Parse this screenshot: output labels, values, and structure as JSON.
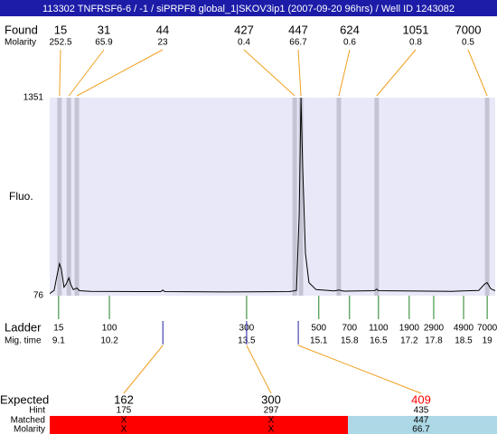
{
  "title": "113302  TNFRSF6-6 / -1 / siPRPF8 global_1|SKOV3ip1 (2007-09-20 96hrs) / Well ID 1243082",
  "chart_data": {
    "type": "line",
    "ylabel": "Fluo.",
    "ylim": [
      76,
      1351
    ],
    "yticks": [
      76,
      1351
    ],
    "xlim": [
      0,
      100
    ],
    "color": "#000000",
    "background": "#e8e8f8",
    "x": [
      0,
      1.0,
      1.6,
      2.2,
      2.6,
      3.2,
      3.7,
      4.3,
      4.7,
      5.3,
      6.1,
      6.7,
      9.1,
      19.3,
      24.9,
      25.4,
      25.8,
      39.6,
      53.8,
      55.4,
      56.0,
      56.4,
      56.8,
      57.4,
      58.2,
      59.8,
      63.9,
      64.9,
      66.0,
      72.9,
      73.4,
      73.8,
      90.2,
      96.3,
      97.6,
      98.2,
      99.0,
      100
    ],
    "values": [
      90,
      110,
      200,
      282,
      250,
      130,
      150,
      190,
      150,
      115,
      125,
      108,
      104,
      102,
      102,
      112,
      102,
      100,
      102,
      110,
      600,
      1351,
      900,
      350,
      160,
      115,
      106,
      112,
      105,
      108,
      118,
      108,
      104,
      110,
      150,
      160,
      120,
      108
    ],
    "found": {
      "label": "Found",
      "molarity_label": "Molarity",
      "sizes": [
        15,
        31,
        44,
        427,
        447,
        624,
        1051,
        7000
      ],
      "molarity": [
        252.5,
        65.9,
        23,
        0.4,
        66.7,
        0.6,
        0.8,
        0.5
      ],
      "x": [
        2.2,
        4.3,
        6.1,
        55.0,
        56.4,
        64.9,
        73.4,
        98.2
      ]
    },
    "ladder": {
      "label": "Ladder",
      "mig_label": "Mig. time",
      "sizes": [
        15,
        100,
        300,
        500,
        700,
        1100,
        1900,
        2900,
        4900,
        7000
      ],
      "mig_time": [
        9.1,
        10.2,
        13.5,
        15.1,
        15.8,
        16.5,
        17.2,
        17.8,
        18.5,
        19
      ],
      "x": [
        2.0,
        13.4,
        44.2,
        60.4,
        67.3,
        73.8,
        80.7,
        86.2,
        92.9,
        98.2
      ]
    },
    "expected": {
      "label": "Expected",
      "hint_label": "Hint",
      "matched_label": "Matched",
      "molarity_label": "Molarity",
      "sizes": [
        162,
        300,
        409
      ],
      "hint": [
        175,
        297,
        435
      ],
      "matched": [
        "X",
        "X",
        447
      ],
      "molarity": [
        "X",
        "X",
        66.7
      ],
      "x": [
        25.4,
        44.2,
        55.8
      ],
      "text_colors": [
        "#000000",
        "#000000",
        "#ff0000"
      ],
      "status_colors": [
        "#ff0000",
        "#ff0000",
        "#add8e6"
      ]
    }
  }
}
